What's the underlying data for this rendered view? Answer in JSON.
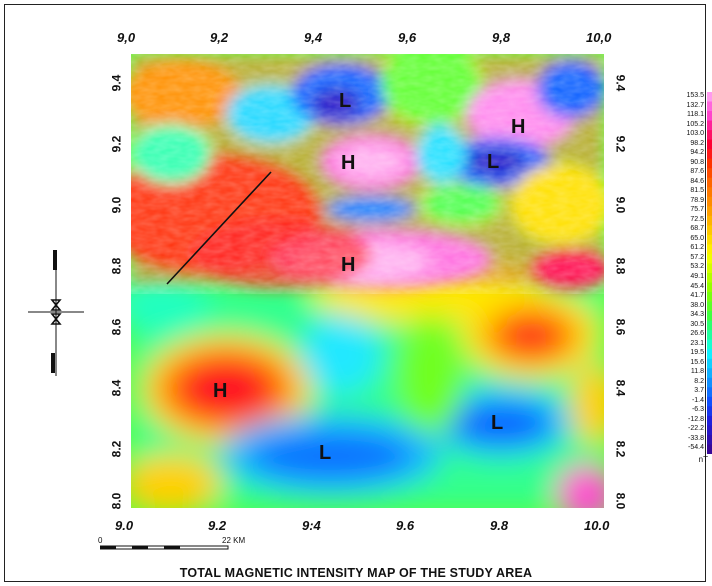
{
  "title": "TOTAL MAGNETIC INTENSITY MAP OF THE STUDY AREA",
  "x_ticks": [
    "9,0",
    "9,2",
    "9,4",
    "9,6",
    "9,8",
    "10,0"
  ],
  "x_ticks_bottom": [
    "9.0",
    "9.2",
    "9:4",
    "9.6",
    "9.8",
    "10.0"
  ],
  "y_ticks": [
    "9.4",
    "9.2",
    "9.0",
    "8.8",
    "8.6",
    "8.4",
    "8.2",
    "8.0"
  ],
  "labels": [
    {
      "text": "L",
      "kind": "low"
    },
    {
      "text": "H",
      "kind": "high"
    },
    {
      "text": "H",
      "kind": "high"
    },
    {
      "text": "L",
      "kind": "low"
    },
    {
      "text": "H",
      "kind": "high"
    },
    {
      "text": "H",
      "kind": "high"
    },
    {
      "text": "L",
      "kind": "low"
    },
    {
      "text": "L",
      "kind": "low"
    }
  ],
  "legend": {
    "unit": "nT",
    "values": [
      "153.5",
      "132.7",
      "118.1",
      "105.2",
      "103.0",
      "98.2",
      "94.2",
      "90.8",
      "87.6",
      "84.6",
      "81.5",
      "78.9",
      "75.7",
      "72.5",
      "68.7",
      "65.0",
      "61.2",
      "57.2",
      "53.2",
      "49.1",
      "45.4",
      "41.7",
      "38.0",
      "34.3",
      "30.5",
      "26.6",
      "23.1",
      "19.5",
      "15.6",
      "11.8",
      "8.2",
      "3.7",
      "-1.4",
      "-6.3",
      "-12.8",
      "-22.2",
      "-33.8",
      "-54.4"
    ],
    "colors": [
      "#ff99ee",
      "#ff66dd",
      "#ff44cc",
      "#ff2299",
      "#ff1166",
      "#ff0033",
      "#ff1a1a",
      "#ff3300",
      "#ff4d00",
      "#ff6600",
      "#ff7a00",
      "#ff8c00",
      "#ffa000",
      "#ffb400",
      "#ffc800",
      "#ffdc00",
      "#fff000",
      "#f0ff00",
      "#d4ff00",
      "#b4ff00",
      "#96ff00",
      "#78ff10",
      "#5cff28",
      "#40ff40",
      "#2cff70",
      "#20ffa0",
      "#18ffd0",
      "#10f0ff",
      "#10d0ff",
      "#10b0ff",
      "#1090ff",
      "#1070ff",
      "#1050ff",
      "#1838ee",
      "#2020dd",
      "#2818c8",
      "#3010b0",
      "#380898"
    ]
  },
  "scale_bar": {
    "start": "0",
    "end": "22 KM"
  },
  "colors": {
    "high_pink": "#ff88e6",
    "red": "#ff2020",
    "orange": "#ff7a00",
    "yellow": "#ffe800",
    "green": "#5cff28",
    "cyan": "#20ffd0",
    "blue": "#1060ff",
    "dark_blue": "#2018c8"
  }
}
